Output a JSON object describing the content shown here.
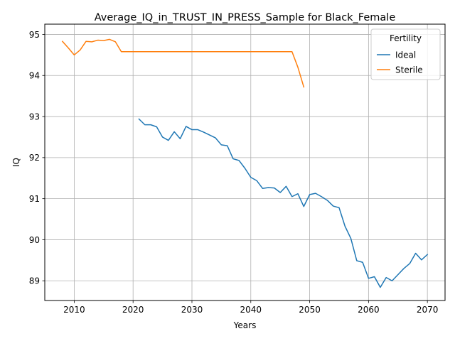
{
  "chart_data": {
    "type": "line",
    "title": "Average_IQ_in_TRUST_IN_PRESS_Sample for Black_Female",
    "xlabel": "Years",
    "ylabel": "IQ",
    "xlim": [
      2005,
      2073
    ],
    "ylim": [
      88.52,
      95.25
    ],
    "xticks": [
      2010,
      2020,
      2030,
      2040,
      2050,
      2060,
      2070
    ],
    "yticks": [
      89,
      90,
      91,
      92,
      93,
      94,
      95
    ],
    "grid": true,
    "legend": {
      "title": "Fertility",
      "placement": "top-right"
    },
    "series": [
      {
        "name": "Ideal",
        "color": "#1f77b4",
        "x": [
          2021,
          2022,
          2023,
          2024,
          2025,
          2026,
          2027,
          2028,
          2029,
          2030,
          2031,
          2032,
          2033,
          2034,
          2035,
          2036,
          2037,
          2038,
          2039,
          2040,
          2041,
          2042,
          2043,
          2044,
          2045,
          2046,
          2047,
          2048,
          2049,
          2050,
          2051,
          2052,
          2053,
          2054,
          2055,
          2056,
          2057,
          2058,
          2059,
          2060,
          2061,
          2062,
          2063,
          2064,
          2065,
          2066,
          2067,
          2068,
          2069,
          2070
        ],
        "y": [
          92.94,
          92.8,
          92.8,
          92.75,
          92.5,
          92.42,
          92.63,
          92.46,
          92.76,
          92.68,
          92.68,
          92.62,
          92.55,
          92.48,
          92.31,
          92.29,
          91.97,
          91.93,
          91.74,
          91.52,
          91.44,
          91.25,
          91.27,
          91.26,
          91.15,
          91.3,
          91.05,
          91.12,
          90.81,
          91.1,
          91.13,
          91.05,
          90.96,
          90.82,
          90.78,
          90.33,
          90.03,
          89.49,
          89.45,
          89.06,
          89.1,
          88.84,
          89.08,
          89.0,
          89.15,
          89.3,
          89.42,
          89.67,
          89.51,
          89.64
        ]
      },
      {
        "name": "Sterile",
        "color": "#ff7f0e",
        "x": [
          2008,
          2009,
          2010,
          2011,
          2012,
          2013,
          2014,
          2015,
          2016,
          2017,
          2018,
          2019,
          2020,
          2025,
          2030,
          2035,
          2040,
          2045,
          2046,
          2047,
          2048,
          2049
        ],
        "y": [
          94.83,
          94.67,
          94.5,
          94.62,
          94.83,
          94.82,
          94.86,
          94.85,
          94.88,
          94.82,
          94.58,
          94.58,
          94.58,
          94.58,
          94.58,
          94.58,
          94.58,
          94.58,
          94.58,
          94.58,
          94.2,
          93.72
        ]
      }
    ]
  }
}
